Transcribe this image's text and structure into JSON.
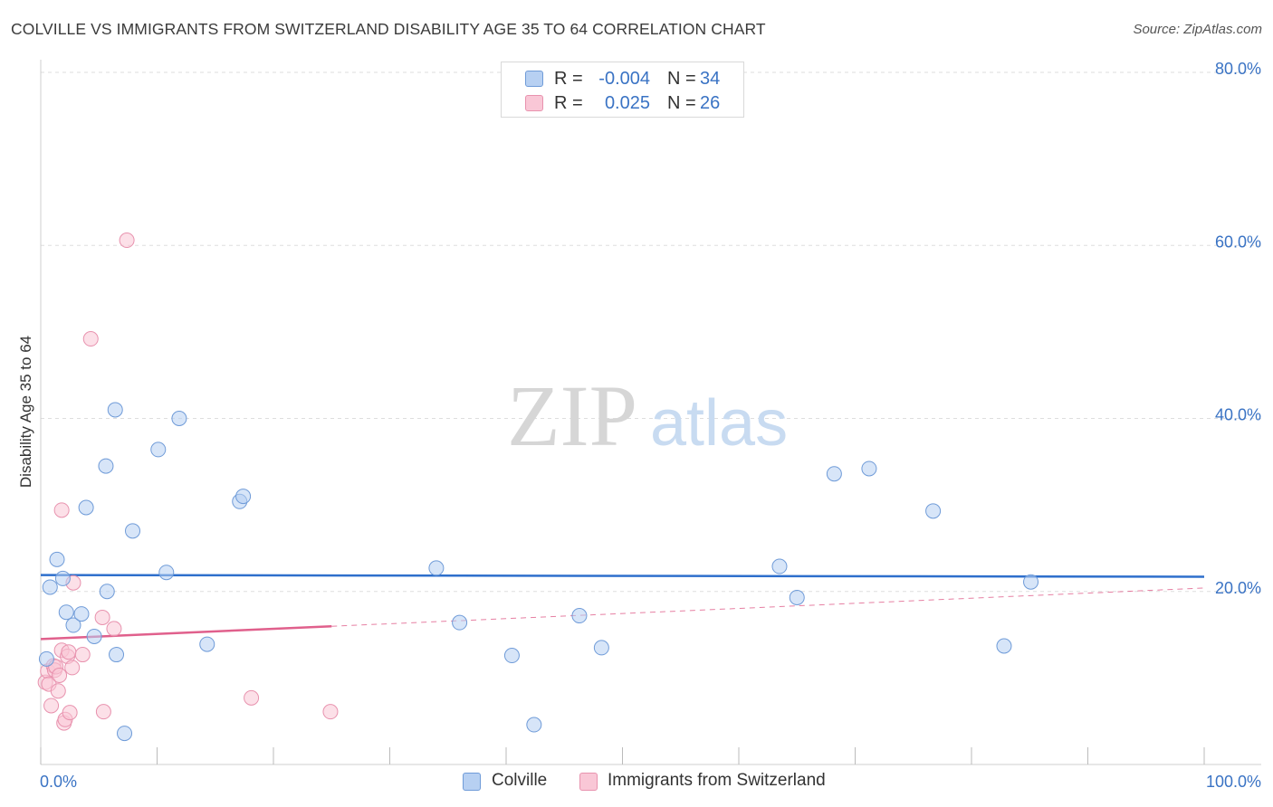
{
  "header": {
    "title": "COLVILLE VS IMMIGRANTS FROM SWITZERLAND DISABILITY AGE 35 TO 64 CORRELATION CHART",
    "source": "Source: ZipAtlas.com"
  },
  "legend": {
    "rows": [
      {
        "r_label": "R =",
        "r_value": "-0.004",
        "n_label": "N =",
        "n_value": "34"
      },
      {
        "r_label": "R =",
        "r_value": "0.025",
        "n_label": "N =",
        "n_value": "26"
      }
    ]
  },
  "bottom_legend": {
    "series_a": "Colville",
    "series_b": "Immigrants from Switzerland"
  },
  "watermark": {
    "zip": "ZIP",
    "atlas": "atlas"
  },
  "colors": {
    "blue_fill": "#b7d0f2",
    "blue_stroke": "#6f9bd8",
    "blue_line": "#2e6fcc",
    "pink_fill": "#f9c7d6",
    "pink_stroke": "#e892ae",
    "pink_line": "#e0608c",
    "axis_label": "#3a73c4",
    "grid": "#dddddd"
  },
  "chart_data": {
    "type": "scatter",
    "title": "COLVILLE VS IMMIGRANTS FROM SWITZERLAND DISABILITY AGE 35 TO 64 CORRELATION CHART",
    "xlabel": "",
    "ylabel": "Disability Age 35 to 64",
    "xlim": [
      0,
      100
    ],
    "ylim": [
      0,
      80
    ],
    "x_tick_labels": [
      "0.0%",
      "100.0%"
    ],
    "y_ticks": [
      20,
      40,
      60,
      80
    ],
    "y_tick_labels": [
      "20.0%",
      "40.0%",
      "60.0%",
      "80.0%"
    ],
    "series": [
      {
        "name": "Colville",
        "r": -0.004,
        "n": 34,
        "trend": {
          "x": [
            0,
            100
          ],
          "y": [
            21.9,
            21.7
          ]
        },
        "points": [
          {
            "x": 0.5,
            "y": 12.2
          },
          {
            "x": 0.8,
            "y": 20.5
          },
          {
            "x": 1.4,
            "y": 23.7
          },
          {
            "x": 1.9,
            "y": 21.5
          },
          {
            "x": 2.2,
            "y": 17.6
          },
          {
            "x": 2.8,
            "y": 16.1
          },
          {
            "x": 3.5,
            "y": 17.4
          },
          {
            "x": 3.9,
            "y": 29.7
          },
          {
            "x": 4.6,
            "y": 14.8
          },
          {
            "x": 5.6,
            "y": 34.5
          },
          {
            "x": 5.7,
            "y": 20.0
          },
          {
            "x": 6.5,
            "y": 12.7
          },
          {
            "x": 6.4,
            "y": 41.0
          },
          {
            "x": 7.2,
            "y": 3.6
          },
          {
            "x": 7.9,
            "y": 27.0
          },
          {
            "x": 10.1,
            "y": 36.4
          },
          {
            "x": 10.8,
            "y": 22.2
          },
          {
            "x": 11.9,
            "y": 40.0
          },
          {
            "x": 14.3,
            "y": 13.9
          },
          {
            "x": 17.1,
            "y": 30.4
          },
          {
            "x": 17.4,
            "y": 31.0
          },
          {
            "x": 34.0,
            "y": 22.7
          },
          {
            "x": 36.0,
            "y": 16.4
          },
          {
            "x": 40.5,
            "y": 12.6
          },
          {
            "x": 42.4,
            "y": 4.6
          },
          {
            "x": 46.3,
            "y": 17.2
          },
          {
            "x": 48.2,
            "y": 13.5
          },
          {
            "x": 63.5,
            "y": 22.9
          },
          {
            "x": 65.0,
            "y": 19.3
          },
          {
            "x": 68.2,
            "y": 33.6
          },
          {
            "x": 71.2,
            "y": 34.2
          },
          {
            "x": 76.7,
            "y": 29.3
          },
          {
            "x": 82.8,
            "y": 13.7
          },
          {
            "x": 85.1,
            "y": 21.1
          }
        ]
      },
      {
        "name": "Immigrants from Switzerland",
        "r": 0.025,
        "n": 26,
        "trend": {
          "x": [
            0,
            100
          ],
          "y": [
            14.5,
            20.4
          ]
        },
        "trend_solid_until": 25,
        "points": [
          {
            "x": 0.4,
            "y": 9.5
          },
          {
            "x": 0.6,
            "y": 10.8
          },
          {
            "x": 0.7,
            "y": 9.3
          },
          {
            "x": 0.9,
            "y": 6.8
          },
          {
            "x": 1.1,
            "y": 11.4
          },
          {
            "x": 1.2,
            "y": 10.9
          },
          {
            "x": 1.3,
            "y": 11.3
          },
          {
            "x": 1.5,
            "y": 8.5
          },
          {
            "x": 1.6,
            "y": 10.3
          },
          {
            "x": 1.8,
            "y": 13.2
          },
          {
            "x": 1.8,
            "y": 29.4
          },
          {
            "x": 2.0,
            "y": 4.8
          },
          {
            "x": 2.1,
            "y": 5.2
          },
          {
            "x": 2.3,
            "y": 12.5
          },
          {
            "x": 2.4,
            "y": 13.0
          },
          {
            "x": 2.5,
            "y": 6.0
          },
          {
            "x": 2.7,
            "y": 11.2
          },
          {
            "x": 2.8,
            "y": 21.0
          },
          {
            "x": 3.6,
            "y": 12.7
          },
          {
            "x": 4.3,
            "y": 49.2
          },
          {
            "x": 5.3,
            "y": 17.0
          },
          {
            "x": 5.4,
            "y": 6.1
          },
          {
            "x": 6.3,
            "y": 15.7
          },
          {
            "x": 7.4,
            "y": 60.6
          },
          {
            "x": 18.1,
            "y": 7.7
          },
          {
            "x": 24.9,
            "y": 6.1
          }
        ]
      }
    ]
  }
}
